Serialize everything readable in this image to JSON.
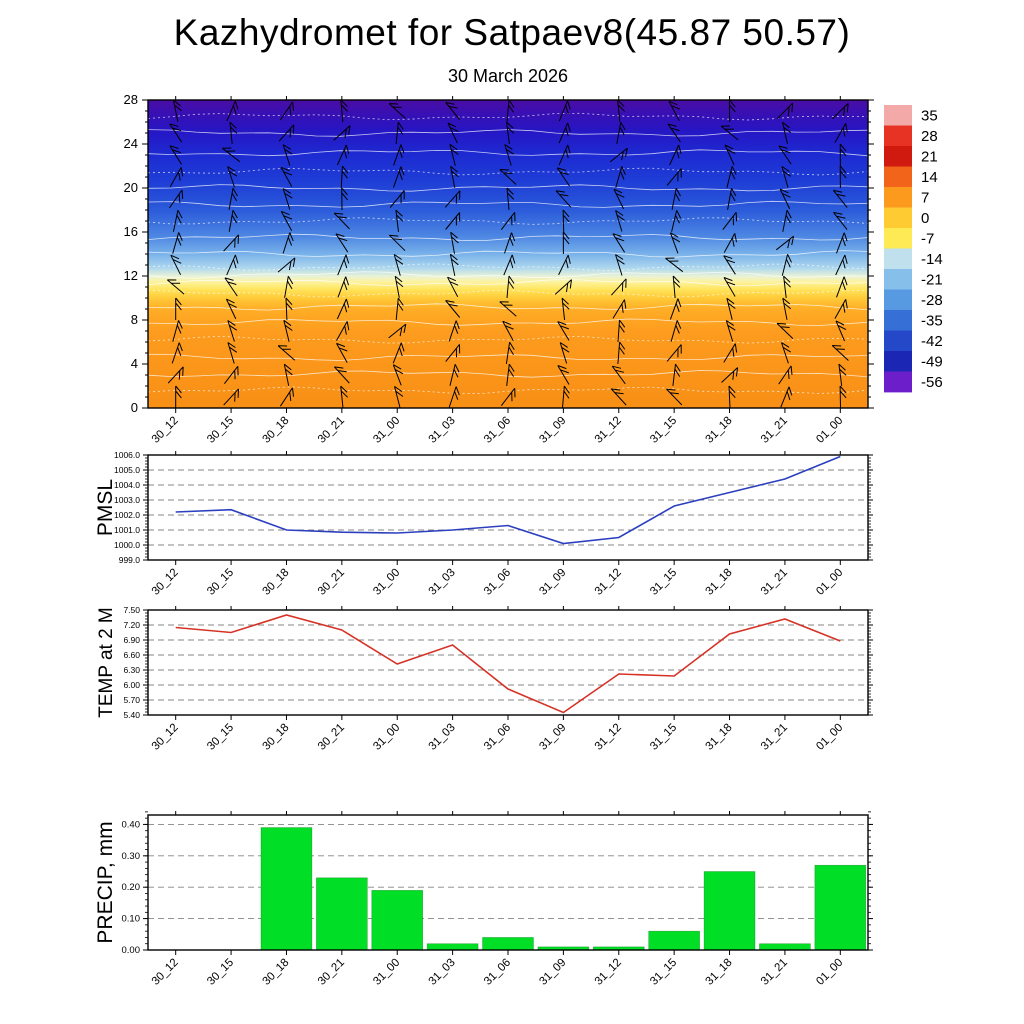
{
  "title": "Kazhydromet for Satpaev8(45.87 50.57)",
  "subtitle": "30 March 2026",
  "time_labels": [
    "30_12",
    "30_15",
    "30_18",
    "30_21",
    "31_00",
    "31_03",
    "31_06",
    "31_09",
    "31_12",
    "31_15",
    "31_18",
    "31_21",
    "01_00"
  ],
  "chart_data": [
    {
      "name": "upper_air_cross_section",
      "type": "heatmap",
      "description": "Time-height temperature cross section with wind barbs",
      "yticks": [
        0,
        4,
        8,
        12,
        16,
        20,
        24,
        28
      ],
      "ytick_labels": [
        "0",
        "4",
        "8",
        "12",
        "16",
        "20",
        "24",
        "28"
      ],
      "ylim": [
        0,
        28
      ],
      "wind_barbs": "present",
      "white_contours": "present",
      "gradient_stops": [
        {
          "pos": 0.0,
          "color": "#4a0da4"
        },
        {
          "pos": 0.04,
          "color": "#3a0fb2"
        },
        {
          "pos": 0.1,
          "color": "#2616c4"
        },
        {
          "pos": 0.18,
          "color": "#1d2bd2"
        },
        {
          "pos": 0.27,
          "color": "#1f3fd6"
        },
        {
          "pos": 0.36,
          "color": "#2c5cda"
        },
        {
          "pos": 0.44,
          "color": "#4c85e2"
        },
        {
          "pos": 0.5,
          "color": "#79b2ea"
        },
        {
          "pos": 0.545,
          "color": "#aed7ee"
        },
        {
          "pos": 0.572,
          "color": "#e8f2d8"
        },
        {
          "pos": 0.59,
          "color": "#fdf3a0"
        },
        {
          "pos": 0.615,
          "color": "#ffe45c"
        },
        {
          "pos": 0.645,
          "color": "#ffc838"
        },
        {
          "pos": 0.68,
          "color": "#ffad26"
        },
        {
          "pos": 0.75,
          "color": "#fd9c1e"
        },
        {
          "pos": 1.0,
          "color": "#f88f16"
        }
      ],
      "colorbar": {
        "tick_labels": [
          "35",
          "28",
          "21",
          "14",
          "7",
          "0",
          "-7",
          "-14",
          "-21",
          "-28",
          "-35",
          "-42",
          "-49",
          "-56"
        ],
        "colors": [
          "#f4a9a9",
          "#e63323",
          "#d01a10",
          "#f26419",
          "#fb9a1d",
          "#fecb33",
          "#fdea55",
          "#bfe0ec",
          "#86c0ea",
          "#579ae2",
          "#366fd6",
          "#2448c8",
          "#1b27b4",
          "#6c1ecb"
        ]
      }
    },
    {
      "name": "pmsl",
      "type": "line",
      "label": "PMSL",
      "line_color": "#2b3fbf",
      "values": [
        1002.2,
        1002.35,
        1001.0,
        1000.85,
        1000.8,
        1001.0,
        1001.3,
        1000.1,
        1000.5,
        1002.6,
        1003.5,
        1004.4,
        1005.9
      ],
      "yticks": [
        999,
        1000,
        1001,
        1002,
        1003,
        1004,
        1005,
        1006
      ],
      "ytick_labels": [
        "999.0",
        "1000.0",
        "1001.0",
        "1002.0",
        "1003.0",
        "1004.0",
        "1005.0",
        "1006.0"
      ],
      "ylim": [
        999,
        1006
      ]
    },
    {
      "name": "temp_2m",
      "type": "line",
      "label": "TEMP at 2 M",
      "line_color": "#d63226",
      "values": [
        7.15,
        7.05,
        7.4,
        7.1,
        6.42,
        6.8,
        5.92,
        5.45,
        6.22,
        6.18,
        7.02,
        7.32,
        6.88
      ],
      "yticks": [
        5.4,
        5.7,
        6.0,
        6.3,
        6.6,
        6.9,
        7.2,
        7.5
      ],
      "ytick_labels": [
        "5.40",
        "5.70",
        "6.00",
        "6.30",
        "6.60",
        "6.90",
        "7.20",
        "7.50"
      ],
      "ylim": [
        5.4,
        7.5
      ]
    },
    {
      "name": "precip",
      "type": "bar",
      "label": "PRECIP, mm",
      "bar_color": "#00df25",
      "values": [
        0,
        0,
        0.39,
        0.23,
        0.19,
        0.02,
        0.04,
        0.01,
        0.01,
        0.06,
        0.25,
        0.02,
        0.27
      ],
      "yticks": [
        0,
        0.1,
        0.2,
        0.3,
        0.4
      ],
      "ytick_labels": [
        "0.00",
        "0.10",
        "0.20",
        "0.30",
        "0.40"
      ],
      "ylim": [
        0,
        0.43
      ]
    }
  ]
}
